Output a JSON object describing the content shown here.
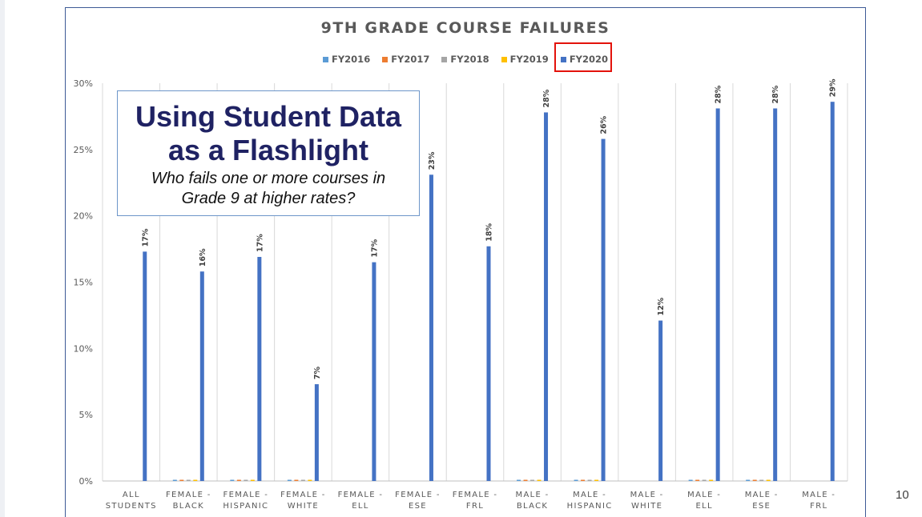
{
  "page_number": "10",
  "callout": {
    "heading_line1": "Using Student Data",
    "heading_line2": "as a Flashlight",
    "sub_line1": "Who fails one or more courses in",
    "sub_line2": "Grade 9 at higher rates?"
  },
  "colors": {
    "FY2016": "#5b9bd5",
    "FY2017": "#ed7d31",
    "FY2018": "#a5a5a5",
    "FY2019": "#ffc000",
    "FY2020": "#4472c4",
    "highlight": "#e3120b"
  },
  "chart_data": {
    "type": "bar",
    "title": "9TH GRADE COURSE FAILURES",
    "xlabel": "",
    "ylabel": "",
    "ylim": [
      0,
      30
    ],
    "yticks": [
      "0%",
      "5%",
      "10%",
      "15%",
      "20%",
      "25%",
      "30%"
    ],
    "grid": "vertical category separators",
    "legend_position": "top",
    "highlighted_series": "FY2020",
    "categories": [
      [
        "ALL",
        "STUDENTS"
      ],
      [
        "FEMALE -",
        "BLACK"
      ],
      [
        "FEMALE -",
        "HISPANIC"
      ],
      [
        "FEMALE -",
        "WHITE"
      ],
      [
        "FEMALE -",
        "ELL"
      ],
      [
        "FEMALE -",
        "ESE"
      ],
      [
        "FEMALE -",
        "FRL"
      ],
      [
        "MALE -",
        "BLACK"
      ],
      [
        "MALE -",
        "HISPANIC"
      ],
      [
        "MALE -",
        "WHITE"
      ],
      [
        "MALE -",
        "ELL"
      ],
      [
        "MALE -",
        "ESE"
      ],
      [
        "MALE -",
        "FRL"
      ]
    ],
    "series": [
      {
        "name": "FY2016",
        "values": [
          0,
          0,
          0,
          0,
          0,
          0,
          0,
          0,
          0,
          0,
          0,
          0,
          0
        ]
      },
      {
        "name": "FY2017",
        "values": [
          0,
          0,
          0,
          0,
          0,
          0,
          0,
          0,
          0,
          0,
          0,
          0,
          0
        ]
      },
      {
        "name": "FY2018",
        "values": [
          0,
          0,
          0,
          0,
          0,
          0,
          0,
          0,
          0,
          0,
          0,
          0,
          0
        ]
      },
      {
        "name": "FY2019",
        "values": [
          0,
          0,
          0,
          0,
          0,
          0,
          0,
          0,
          0,
          0,
          0,
          0,
          0
        ]
      },
      {
        "name": "FY2020",
        "values": [
          17.3,
          15.8,
          16.9,
          7.3,
          16.5,
          23.1,
          17.7,
          27.8,
          25.8,
          12.1,
          28.1,
          28.1,
          28.6
        ]
      }
    ],
    "data_labels": {
      "FY2020": [
        "17%",
        "16%",
        "17%",
        "7%",
        "17%",
        "23%",
        "18%",
        "28%",
        "26%",
        "12%",
        "28%",
        "28%",
        "29%"
      ]
    }
  }
}
